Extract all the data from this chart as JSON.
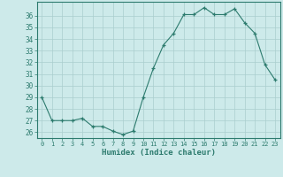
{
  "x": [
    0,
    1,
    2,
    3,
    4,
    5,
    6,
    7,
    8,
    9,
    10,
    11,
    12,
    13,
    14,
    15,
    16,
    17,
    18,
    19,
    20,
    21,
    22,
    23
  ],
  "y": [
    29,
    27,
    27,
    27,
    27.2,
    26.5,
    26.5,
    26.1,
    25.8,
    26.1,
    29,
    31.5,
    33.5,
    34.5,
    36.1,
    36.1,
    36.7,
    36.1,
    36.1,
    36.6,
    35.4,
    34.5,
    31.8,
    30.5
  ],
  "xlabel": "Humidex (Indice chaleur)",
  "ylim": [
    25.5,
    37.2
  ],
  "xlim": [
    -0.5,
    23.5
  ],
  "yticks": [
    26,
    27,
    28,
    29,
    30,
    31,
    32,
    33,
    34,
    35,
    36
  ],
  "xticks": [
    0,
    1,
    2,
    3,
    4,
    5,
    6,
    7,
    8,
    9,
    10,
    11,
    12,
    13,
    14,
    15,
    16,
    17,
    18,
    19,
    20,
    21,
    22,
    23
  ],
  "xtick_labels": [
    "0",
    "1",
    "2",
    "3",
    "4",
    "5",
    "6",
    "7",
    "8",
    "9",
    "10",
    "11",
    "12",
    "13",
    "14",
    "15",
    "16",
    "17",
    "18",
    "19",
    "20",
    "21",
    "22",
    "23"
  ],
  "line_color": "#2d7b6e",
  "marker": "+",
  "bg_color": "#cdeaea",
  "grid_color": "#aacece",
  "tick_color": "#2d7b6e",
  "label_color": "#2d7b6e",
  "spine_color": "#2d7b6e"
}
